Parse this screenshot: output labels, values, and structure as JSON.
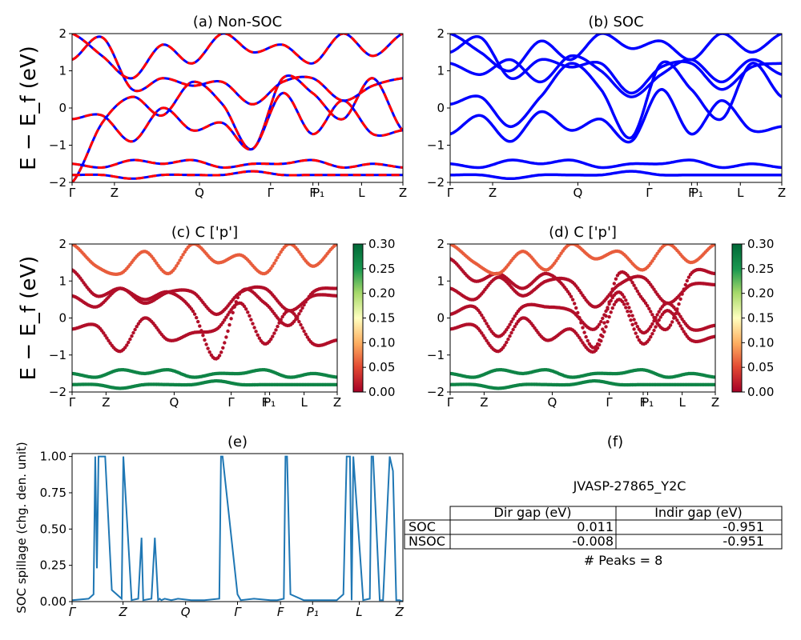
{
  "chart_data": [
    {
      "id": "a",
      "type": "line",
      "title": "(a) Non-SOC",
      "ylabel": "E − E_f (eV)",
      "ylim": [
        -2,
        2
      ],
      "yticks": [
        "2",
        "1",
        "0",
        "−1",
        "−2"
      ],
      "xticks": [
        "Γ",
        "Z",
        "Q",
        "Γ",
        "F",
        "P₁",
        "L",
        "Z"
      ],
      "series": [
        {
          "color": "#0000ff",
          "values": [
            [
              -2.0,
              -0.4,
              0.3,
              -0.2,
              0.7,
              0.1,
              -1.1,
              0.8,
              0.4,
              -0.3,
              0.8,
              -0.6
            ],
            [
              1.3,
              1.9,
              0.5,
              0.8,
              0.6,
              0.7,
              0.1,
              0.7,
              0.8,
              0.2,
              0.6,
              0.8
            ],
            [
              -0.3,
              -0.2,
              -0.9,
              0.0,
              -0.6,
              -0.4,
              -1.1,
              0.4,
              -0.7,
              0.2,
              -0.7,
              -0.6
            ],
            [
              -1.5,
              -1.6,
              -1.4,
              -1.5,
              -1.4,
              -1.6,
              -1.5,
              -1.5,
              -1.4,
              -1.6,
              -1.5,
              -1.6
            ],
            [
              -1.8,
              -1.8,
              -1.9,
              -1.8,
              -1.8,
              -1.8,
              -1.7,
              -1.8,
              -1.8,
              -1.8,
              -1.8,
              -1.8
            ],
            [
              2.0,
              1.4,
              0.8,
              1.7,
              1.2,
              2.0,
              1.5,
              1.7,
              1.2,
              2.0,
              1.4,
              2.0
            ]
          ]
        },
        {
          "color": "#ff0000",
          "dashed": true
        }
      ]
    },
    {
      "id": "b",
      "type": "line",
      "title": "(b) SOC",
      "ylim": [
        -2,
        2
      ],
      "yticks": [
        "2",
        "1",
        "0",
        "−1",
        "−2"
      ],
      "xticks": [
        "Γ",
        "Z",
        "Q",
        "Γ",
        "F",
        "P₁",
        "L",
        "Z"
      ],
      "series": [
        {
          "color": "#0000ff",
          "values": [
            [
              0.1,
              0.3,
              -0.5,
              0.3,
              1.2,
              0.5,
              -0.8,
              1.2,
              0.5,
              -0.3,
              1.2,
              0.3
            ],
            [
              1.5,
              1.9,
              0.8,
              1.3,
              1.1,
              1.2,
              0.4,
              1.1,
              1.2,
              0.5,
              1.1,
              1.2
            ],
            [
              -0.7,
              -0.2,
              -0.9,
              -0.1,
              -0.6,
              -0.3,
              -0.9,
              0.5,
              -0.7,
              0.2,
              -0.6,
              -0.5
            ],
            [
              1.2,
              0.9,
              1.3,
              0.7,
              1.4,
              1.0,
              0.3,
              0.9,
              1.3,
              0.7,
              1.3,
              0.9
            ],
            [
              -1.5,
              -1.6,
              -1.4,
              -1.5,
              -1.4,
              -1.6,
              -1.5,
              -1.5,
              -1.4,
              -1.6,
              -1.5,
              -1.6
            ],
            [
              -1.8,
              -1.8,
              -1.9,
              -1.8,
              -1.8,
              -1.8,
              -1.7,
              -1.8,
              -1.8,
              -1.8,
              -1.8,
              -1.8
            ],
            [
              2.0,
              1.5,
              1.0,
              1.8,
              1.3,
              2.0,
              1.6,
              1.8,
              1.3,
              2.0,
              1.5,
              2.0
            ]
          ]
        }
      ]
    },
    {
      "id": "c",
      "type": "scatter",
      "title": "(c)  C ['p']",
      "ylabel": "E − E_f (eV)",
      "ylim": [
        -2,
        2
      ],
      "yticks": [
        "2",
        "1",
        "0",
        "−1",
        "−2"
      ],
      "xticks": [
        "Γ",
        "Z",
        "Q",
        "Γ",
        "F",
        "P₁",
        "L",
        "Z"
      ],
      "colorbar": {
        "min": 0.0,
        "max": 0.3,
        "ticks": [
          "0.30",
          "0.25",
          "0.20",
          "0.15",
          "0.10",
          "0.05",
          "0.00"
        ]
      },
      "series": [
        {
          "values": [
            [
              1.3,
              0.6,
              0.8,
              0.5,
              0.7,
              0.2,
              -1.1,
              0.7,
              0.4,
              -0.2,
              0.7,
              0.8
            ],
            [
              0.6,
              0.3,
              0.8,
              0.4,
              0.7,
              0.7,
              0.1,
              0.7,
              0.8,
              0.2,
              0.6,
              0.6
            ],
            [
              -0.3,
              -0.2,
              -0.9,
              0.0,
              -0.6,
              -0.4,
              -0.3,
              0.4,
              -0.7,
              0.2,
              -0.7,
              -0.6
            ]
          ],
          "c": 0.01
        },
        {
          "values": [
            [
              -1.5,
              -1.6,
              -1.4,
              -1.5,
              -1.4,
              -1.6,
              -1.5,
              -1.5,
              -1.4,
              -1.6,
              -1.5,
              -1.6
            ],
            [
              -1.8,
              -1.8,
              -1.9,
              -1.8,
              -1.8,
              -1.8,
              -1.7,
              -1.8,
              -1.8,
              -1.8,
              -1.8,
              -1.8
            ]
          ],
          "c": 0.27
        },
        {
          "values": [
            [
              2.0,
              1.4,
              1.2,
              1.8,
              1.2,
              2.0,
              1.5,
              1.7,
              1.2,
              2.0,
              1.4,
              2.0
            ]
          ],
          "c": 0.06
        }
      ]
    },
    {
      "id": "d",
      "type": "scatter",
      "title": "(d) C ['p']",
      "ylim": [
        -2,
        2
      ],
      "yticks": [
        "2",
        "1",
        "0",
        "−1",
        "−2"
      ],
      "xticks": [
        "Γ",
        "Z",
        "Q",
        "Γ",
        "F",
        "P₁",
        "L",
        "Z"
      ],
      "colorbar": {
        "min": 0.0,
        "max": 0.3,
        "ticks": [
          "0.30",
          "0.25",
          "0.20",
          "0.15",
          "0.10",
          "0.05",
          "0.00"
        ]
      },
      "series": [
        {
          "values": [
            [
              1.6,
              1.0,
              1.2,
              0.8,
              1.2,
              0.6,
              -0.8,
              1.2,
              0.5,
              -0.3,
              1.2,
              1.2
            ],
            [
              0.8,
              0.5,
              1.1,
              0.6,
              1.0,
              1.0,
              0.3,
              0.9,
              1.1,
              0.4,
              0.9,
              0.9
            ],
            [
              0.1,
              0.3,
              -0.5,
              0.3,
              0.3,
              0.2,
              -0.3,
              0.7,
              -0.4,
              0.4,
              -0.3,
              -0.2
            ],
            [
              -0.3,
              -0.2,
              -0.9,
              0.0,
              -0.6,
              -0.3,
              -0.9,
              0.5,
              -0.7,
              0.2,
              -0.6,
              -0.5
            ]
          ],
          "c": 0.01
        },
        {
          "values": [
            [
              -1.5,
              -1.6,
              -1.4,
              -1.5,
              -1.4,
              -1.6,
              -1.5,
              -1.5,
              -1.4,
              -1.6,
              -1.5,
              -1.6
            ],
            [
              -1.8,
              -1.8,
              -1.9,
              -1.8,
              -1.8,
              -1.8,
              -1.7,
              -1.8,
              -1.8,
              -1.8,
              -1.8,
              -1.8
            ]
          ],
          "c": 0.27
        },
        {
          "values": [
            [
              2.0,
              1.5,
              1.2,
              1.8,
              1.3,
              2.0,
              1.6,
              1.8,
              1.3,
              2.0,
              1.5,
              2.0
            ]
          ],
          "c": 0.06
        }
      ]
    },
    {
      "id": "e",
      "type": "line",
      "title": "(e)",
      "ylabel": "SOC spillage (chg. den. unit)",
      "ylim": [
        0,
        1.02
      ],
      "yticks": [
        "1.00",
        "0.75",
        "0.50",
        "0.25",
        "0.00"
      ],
      "xticks": [
        "Γ",
        "Z",
        "Q",
        "Γ",
        "F",
        "P₁",
        "L",
        "Z"
      ],
      "color": "#1f77b4",
      "x": [
        0,
        0.05,
        0.065,
        0.07,
        0.075,
        0.08,
        0.085,
        0.09,
        0.1,
        0.12,
        0.15,
        0.155,
        0.18,
        0.2,
        0.21,
        0.215,
        0.24,
        0.25,
        0.26,
        0.265,
        0.27,
        0.28,
        0.3,
        0.32,
        0.36,
        0.4,
        0.445,
        0.45,
        0.455,
        0.5,
        0.51,
        0.55,
        0.6,
        0.62,
        0.64,
        0.645,
        0.65,
        0.66,
        0.7,
        0.8,
        0.82,
        0.83,
        0.84,
        0.845,
        0.85,
        0.88,
        0.9,
        0.905,
        0.91,
        0.93,
        0.94,
        0.96,
        0.97,
        0.98,
        0.99,
        1.0
      ],
      "values": [
        0.01,
        0.02,
        0.05,
        1.0,
        0.23,
        1.0,
        1.0,
        1.0,
        1.0,
        0.08,
        0.02,
        1.0,
        0.01,
        0.02,
        0.44,
        0.01,
        0.02,
        0.44,
        0.01,
        0.02,
        0.01,
        0.02,
        0.01,
        0.02,
        0.01,
        0.01,
        0.02,
        1.0,
        1.0,
        0.05,
        0.01,
        0.02,
        0.01,
        0.01,
        0.02,
        1.0,
        1.0,
        0.05,
        0.01,
        0.01,
        0.05,
        1.0,
        1.0,
        0.01,
        1.0,
        0.01,
        0.02,
        1.0,
        1.0,
        0.01,
        0.01,
        1.0,
        0.9,
        0.01,
        0.01,
        0.0
      ]
    }
  ],
  "panel_f": {
    "title": "(f)",
    "material": "JVASP-27865_Y2C",
    "table": {
      "headers": [
        "Dir gap (eV)",
        "Indir gap (eV)"
      ],
      "rows": [
        {
          "label": "SOC",
          "dir": "0.011",
          "indir": "-0.951"
        },
        {
          "label": "NSOC",
          "dir": "-0.008",
          "indir": "-0.951"
        }
      ]
    },
    "peaks": "# Peaks = 8"
  }
}
